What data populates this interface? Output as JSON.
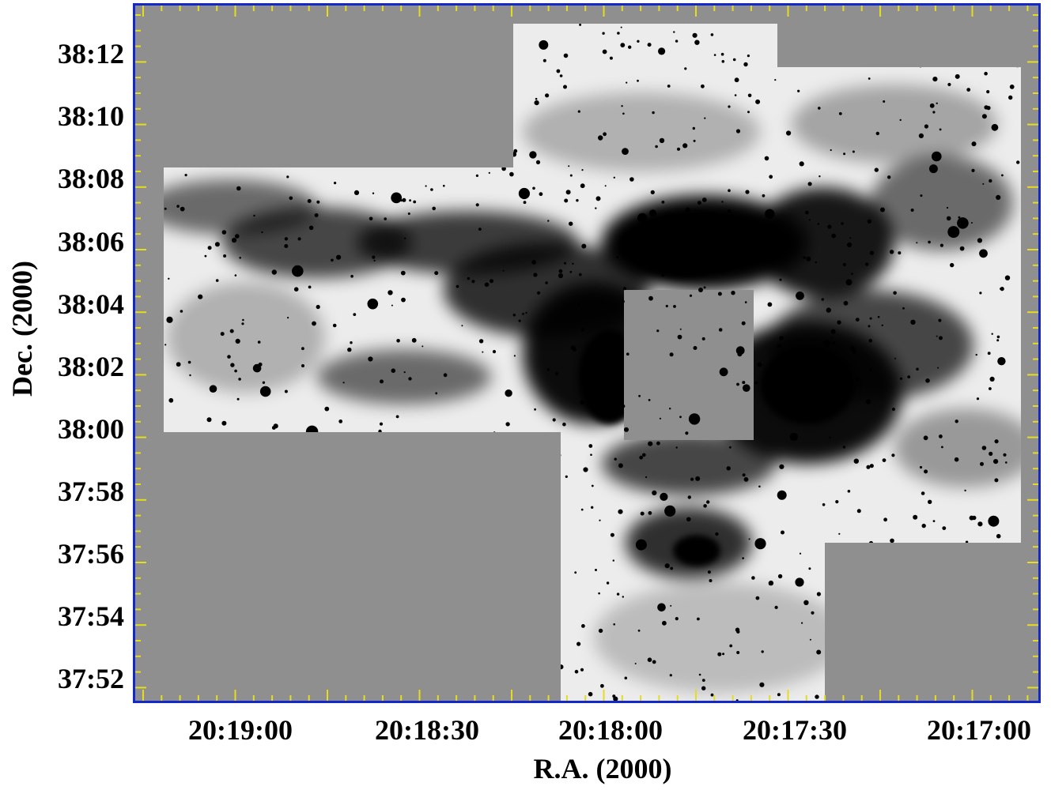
{
  "axes": {
    "xlabel": "R.A. (2000)",
    "ylabel": "Dec. (2000)",
    "x_ticks": [
      "20:19:00",
      "20:18:30",
      "20:18:00",
      "20:17:30",
      "20:17:00"
    ],
    "y_ticks": [
      "38:12",
      "38:10",
      "38:08",
      "38:06",
      "38:04",
      "38:02",
      "38:00",
      "37:58",
      "37:56",
      "37:54",
      "37:52"
    ]
  },
  "image": {
    "description_color_scale": "inverted grayscale",
    "background_color": "#8f8f8f",
    "frame_color": "#1428c8",
    "tick_color": "#e6dc1e"
  }
}
